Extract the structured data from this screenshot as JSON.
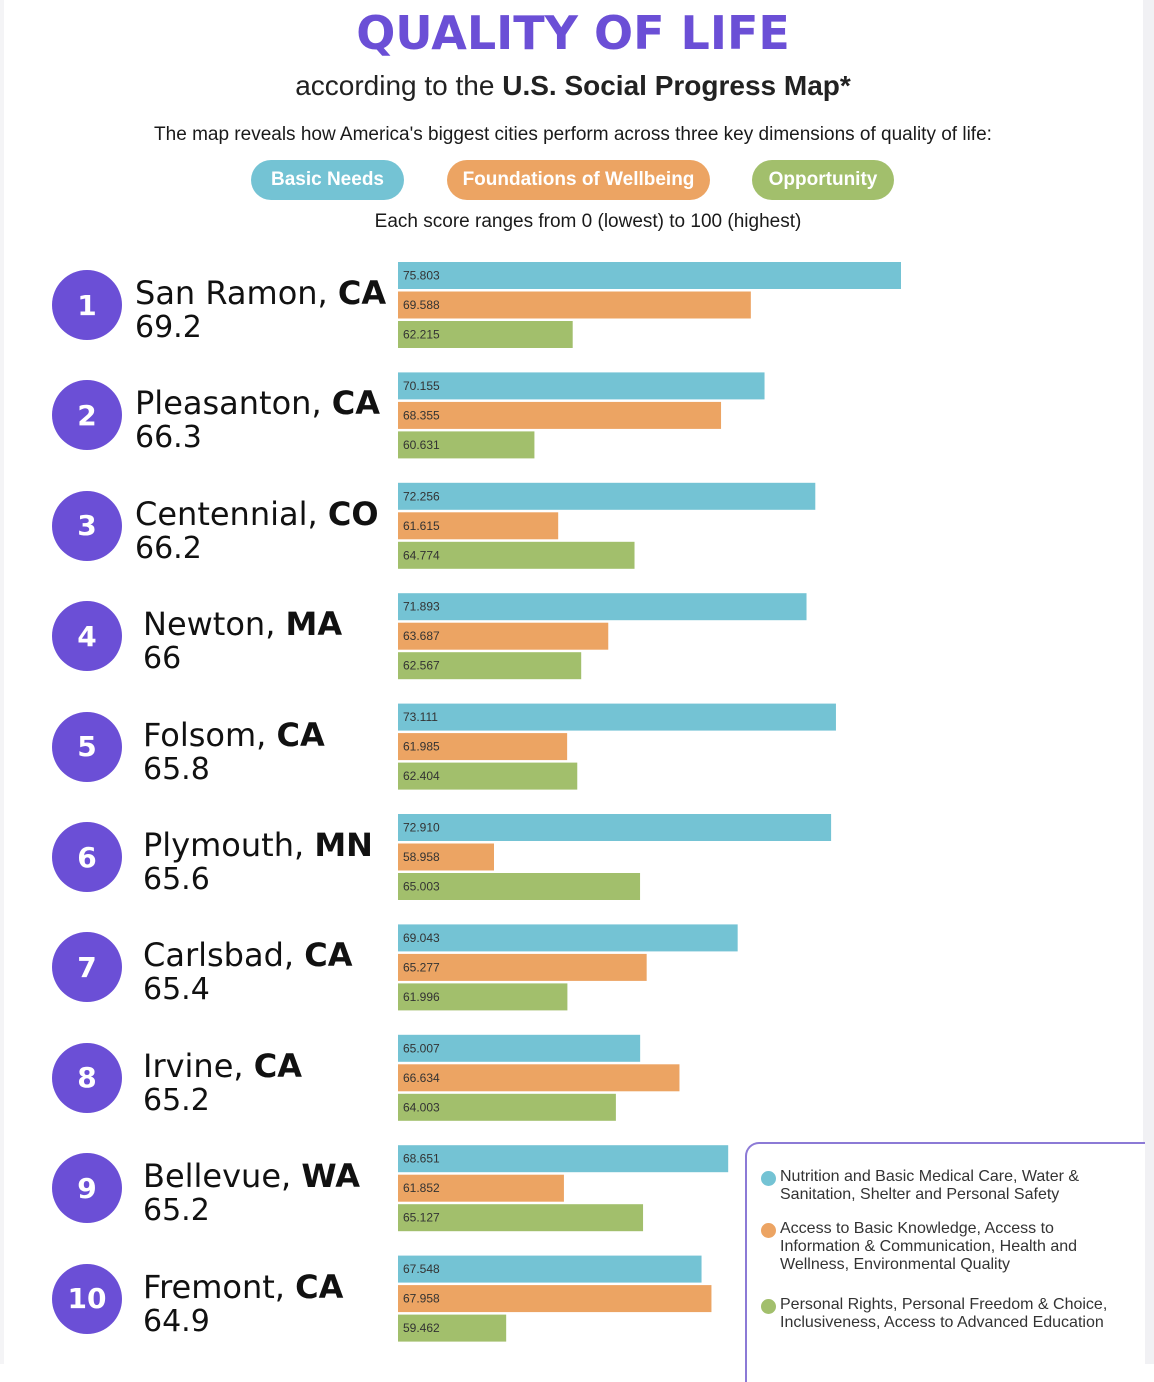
{
  "title": "QUALITY OF LIFE",
  "subtitle_prefix": "according to the ",
  "subtitle_bold": "U.S. Social Progress Map*",
  "intro": "The map reveals how America's biggest cities perform across three key dimensions of quality of life:",
  "dimensions": [
    "Basic Needs",
    "Foundations of Wellbeing",
    "Opportunity"
  ],
  "range_note": "Each score ranges from 0 (lowest) to 100 (highest)",
  "colors": {
    "title": "#6b4fd6",
    "basic_needs": "#74c3d4",
    "foundations": "#eca463",
    "opportunity": "#a2bf6c",
    "rank_circle": "#6b4fd6"
  },
  "legend": [
    {
      "text": "Nutrition and Basic Medical Care, Water & Sanitation, Shelter and Personal Safety"
    },
    {
      "text": "Access to Basic Knowledge, Access to Information & Communication, Health and Wellness, Environmental Quality"
    },
    {
      "text": "Personal Rights, Personal Freedom & Choice, Inclusiveness, Access to Advanced Education"
    }
  ],
  "chart_data": {
    "type": "bar",
    "orientation": "horizontal",
    "series_names": [
      "Basic Needs",
      "Foundations of Wellbeing",
      "Opportunity"
    ],
    "categories": [
      {
        "rank": "1",
        "city": "San Ramon, ",
        "state": "CA",
        "score": "69.2",
        "values": [
          75.803,
          69.588,
          62.215
        ],
        "labels": [
          "75.803",
          "69.588",
          "62.215"
        ]
      },
      {
        "rank": "2",
        "city": "Pleasanton, ",
        "state": "CA",
        "score": "66.3",
        "values": [
          70.155,
          68.355,
          60.631
        ],
        "labels": [
          "70.155",
          "68.355",
          "60.631"
        ]
      },
      {
        "rank": "3",
        "city": "Centennial, ",
        "state": "CO",
        "score": "66.2",
        "values": [
          72.256,
          61.615,
          64.774
        ],
        "labels": [
          "72.256",
          "61.615",
          "64.774"
        ]
      },
      {
        "rank": "4",
        "city": "Newton, ",
        "state": "MA",
        "score": "66",
        "values": [
          71.893,
          63.687,
          62.567
        ],
        "labels": [
          "71.893",
          "63.687",
          "62.567"
        ]
      },
      {
        "rank": "5",
        "city": "Folsom, ",
        "state": "CA",
        "score": "65.8",
        "values": [
          73.111,
          61.985,
          62.404
        ],
        "labels": [
          "73.111",
          "61.985",
          "62.404"
        ]
      },
      {
        "rank": "6",
        "city": "Plymouth, ",
        "state": "MN",
        "score": "65.6",
        "values": [
          72.91,
          58.958,
          65.003
        ],
        "labels": [
          "72.910",
          "58.958",
          "65.003"
        ]
      },
      {
        "rank": "7",
        "city": "Carlsbad, ",
        "state": "CA",
        "score": "65.4",
        "values": [
          69.043,
          65.277,
          61.996
        ],
        "labels": [
          "69.043",
          "65.277",
          "61.996"
        ]
      },
      {
        "rank": "8",
        "city": "Irvine, ",
        "state": "CA",
        "score": "65.2",
        "values": [
          65.007,
          66.634,
          64.003
        ],
        "labels": [
          "65.007",
          "66.634",
          "64.003"
        ]
      },
      {
        "rank": "9",
        "city": "Bellevue, ",
        "state": "WA",
        "score": "65.2",
        "values": [
          68.651,
          61.852,
          65.127
        ],
        "labels": [
          "68.651",
          "61.852",
          "65.127"
        ]
      },
      {
        "rank": "10",
        "city": "Fremont, ",
        "state": "CA",
        "score": "64.9",
        "values": [
          67.548,
          67.958,
          59.462
        ],
        "labels": [
          "67.548",
          "67.958",
          "59.462"
        ]
      }
    ]
  }
}
